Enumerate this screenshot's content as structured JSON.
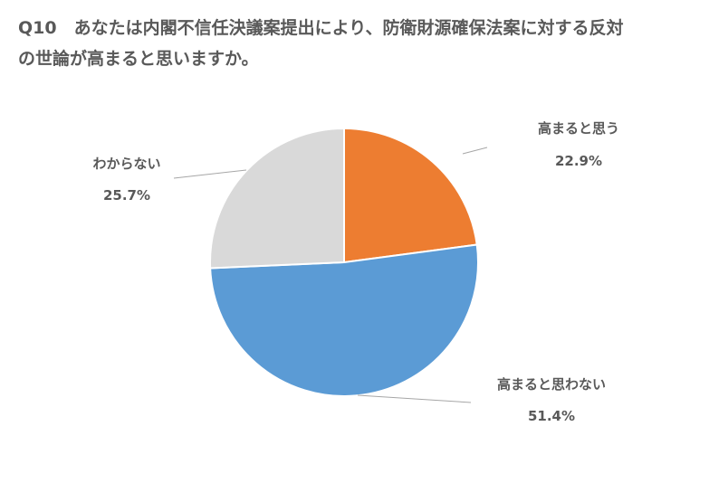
{
  "page": {
    "title_lines": [
      "Q10　あなたは内閣不信任決議案提出により、防衛財源確保法案に対する反対",
      "の世論が高まると思いますか。"
    ]
  },
  "chart_data": {
    "type": "pie",
    "title": "Q10　あなたは内閣不信任決議案提出により、防衛財源確保法案に対する反対の世論が高まると思いますか。",
    "start_angle": "12 o'clock",
    "direction": "clockwise",
    "labels_outside": true,
    "slices": [
      {
        "name": "高まると思う",
        "value": 22.9,
        "label": "22.9%",
        "color": "#ED7D31"
      },
      {
        "name": "高まると思わない",
        "value": 51.4,
        "label": "51.4%",
        "color": "#5B9BD5"
      },
      {
        "name": "わからない",
        "value": 25.7,
        "label": "25.7%",
        "color": "#D9D9D9"
      }
    ]
  }
}
